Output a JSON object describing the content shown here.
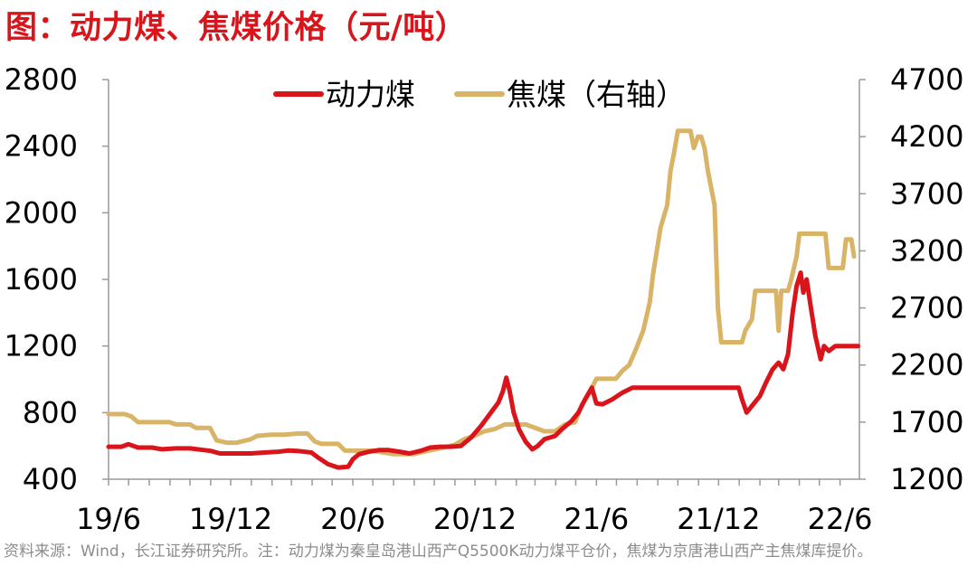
{
  "title": "图：动力煤、焦煤价格（元/吨）",
  "source_note": "资料来源：Wind，长江证券研究所。注：动力煤为秦皇岛港山西产Q5500K动力煤平仓价，焦煤为京唐港山西产主焦煤库提价。",
  "colors": {
    "thermal": "#d9141b",
    "coking": "#d9b467",
    "axis": "#9a9a9a"
  },
  "chart_data": {
    "type": "line",
    "x_labels": [
      "19/6",
      "19/12",
      "20/6",
      "20/12",
      "21/6",
      "21/12",
      "22/6"
    ],
    "ylim_left": [
      400,
      2800
    ],
    "yticks_left": [
      400,
      800,
      1200,
      1600,
      2000,
      2400,
      2800
    ],
    "ylim_right": [
      1200,
      4700
    ],
    "yticks_right": [
      1200,
      1700,
      2200,
      2700,
      3200,
      3700,
      4200,
      4700
    ],
    "legend_position": "top",
    "series": [
      {
        "name": "动力煤",
        "axis": "left",
        "points": [
          [
            "2019-06-01",
            595
          ],
          [
            "2019-06-20",
            595
          ],
          [
            "2019-07-01",
            610
          ],
          [
            "2019-07-15",
            590
          ],
          [
            "2019-08-05",
            590
          ],
          [
            "2019-08-20",
            580
          ],
          [
            "2019-09-10",
            585
          ],
          [
            "2019-10-01",
            585
          ],
          [
            "2019-11-01",
            570
          ],
          [
            "2019-11-15",
            555
          ],
          [
            "2019-12-01",
            555
          ],
          [
            "2019-12-31",
            555
          ],
          [
            "2020-01-20",
            560
          ],
          [
            "2020-02-10",
            565
          ],
          [
            "2020-02-25",
            572
          ],
          [
            "2020-03-10",
            570
          ],
          [
            "2020-03-31",
            560
          ],
          [
            "2020-04-10",
            530
          ],
          [
            "2020-04-25",
            490
          ],
          [
            "2020-05-10",
            470
          ],
          [
            "2020-05-25",
            475
          ],
          [
            "2020-06-01",
            520
          ],
          [
            "2020-06-10",
            550
          ],
          [
            "2020-06-25",
            565
          ],
          [
            "2020-07-10",
            575
          ],
          [
            "2020-07-25",
            575
          ],
          [
            "2020-08-10",
            565
          ],
          [
            "2020-08-25",
            555
          ],
          [
            "2020-09-10",
            570
          ],
          [
            "2020-09-25",
            590
          ],
          [
            "2020-10-10",
            595
          ],
          [
            "2020-10-25",
            595
          ],
          [
            "2020-11-10",
            600
          ],
          [
            "2020-11-25",
            650
          ],
          [
            "2020-12-10",
            720
          ],
          [
            "2020-12-25",
            800
          ],
          [
            "2021-01-05",
            860
          ],
          [
            "2021-01-12",
            930
          ],
          [
            "2021-01-17",
            1010
          ],
          [
            "2021-01-22",
            930
          ],
          [
            "2021-01-28",
            800
          ],
          [
            "2021-02-05",
            700
          ],
          [
            "2021-02-15",
            625
          ],
          [
            "2021-02-25",
            580
          ],
          [
            "2021-03-05",
            600
          ],
          [
            "2021-03-15",
            640
          ],
          [
            "2021-03-31",
            660
          ],
          [
            "2021-04-10",
            700
          ],
          [
            "2021-04-25",
            750
          ],
          [
            "2021-05-05",
            800
          ],
          [
            "2021-05-15",
            880
          ],
          [
            "2021-05-25",
            950
          ],
          [
            "2021-06-01",
            855
          ],
          [
            "2021-06-10",
            850
          ],
          [
            "2021-06-25",
            880
          ],
          [
            "2021-07-10",
            920
          ],
          [
            "2021-07-25",
            950
          ],
          [
            "2021-08-15",
            950
          ],
          [
            "2021-09-15",
            950
          ],
          [
            "2021-10-15",
            950
          ],
          [
            "2021-11-15",
            950
          ],
          [
            "2021-12-15",
            950
          ],
          [
            "2021-12-31",
            950
          ],
          [
            "2022-01-05",
            880
          ],
          [
            "2022-01-12",
            800
          ],
          [
            "2022-01-20",
            840
          ],
          [
            "2022-02-01",
            900
          ],
          [
            "2022-02-10",
            980
          ],
          [
            "2022-02-20",
            1060
          ],
          [
            "2022-03-01",
            1100
          ],
          [
            "2022-03-08",
            1060
          ],
          [
            "2022-03-15",
            1150
          ],
          [
            "2022-03-22",
            1400
          ],
          [
            "2022-03-28",
            1560
          ],
          [
            "2022-04-03",
            1640
          ],
          [
            "2022-04-07",
            1520
          ],
          [
            "2022-04-12",
            1600
          ],
          [
            "2022-04-18",
            1440
          ],
          [
            "2022-04-25",
            1260
          ],
          [
            "2022-05-03",
            1120
          ],
          [
            "2022-05-08",
            1200
          ],
          [
            "2022-05-15",
            1170
          ],
          [
            "2022-05-25",
            1200
          ],
          [
            "2022-06-10",
            1200
          ],
          [
            "2022-06-28",
            1200
          ]
        ]
      },
      {
        "name": "焦煤（右轴）",
        "axis": "right",
        "points": [
          [
            "2019-06-01",
            1770
          ],
          [
            "2019-06-25",
            1770
          ],
          [
            "2019-07-05",
            1750
          ],
          [
            "2019-07-15",
            1700
          ],
          [
            "2019-08-31",
            1700
          ],
          [
            "2019-09-10",
            1680
          ],
          [
            "2019-10-01",
            1680
          ],
          [
            "2019-10-10",
            1650
          ],
          [
            "2019-10-31",
            1650
          ],
          [
            "2019-11-10",
            1540
          ],
          [
            "2019-11-25",
            1520
          ],
          [
            "2019-12-10",
            1520
          ],
          [
            "2019-12-31",
            1550
          ],
          [
            "2020-01-10",
            1580
          ],
          [
            "2020-01-31",
            1590
          ],
          [
            "2020-02-20",
            1590
          ],
          [
            "2020-03-10",
            1600
          ],
          [
            "2020-03-25",
            1600
          ],
          [
            "2020-04-05",
            1530
          ],
          [
            "2020-04-15",
            1510
          ],
          [
            "2020-05-10",
            1510
          ],
          [
            "2020-05-20",
            1450
          ],
          [
            "2020-06-01",
            1450
          ],
          [
            "2020-06-30",
            1450
          ],
          [
            "2020-07-31",
            1420
          ],
          [
            "2020-08-31",
            1420
          ],
          [
            "2020-09-15",
            1440
          ],
          [
            "2020-10-01",
            1460
          ],
          [
            "2020-10-31",
            1500
          ],
          [
            "2020-11-15",
            1550
          ],
          [
            "2020-11-30",
            1580
          ],
          [
            "2020-12-15",
            1620
          ],
          [
            "2020-12-31",
            1640
          ],
          [
            "2021-01-15",
            1680
          ],
          [
            "2021-02-15",
            1680
          ],
          [
            "2021-03-15",
            1620
          ],
          [
            "2021-03-31",
            1620
          ],
          [
            "2021-04-15",
            1680
          ],
          [
            "2021-04-30",
            1700
          ],
          [
            "2021-05-10",
            1850
          ],
          [
            "2021-05-20",
            1940
          ],
          [
            "2021-06-01",
            2080
          ],
          [
            "2021-06-30",
            2080
          ],
          [
            "2021-07-10",
            2150
          ],
          [
            "2021-07-20",
            2200
          ],
          [
            "2021-07-31",
            2350
          ],
          [
            "2021-08-10",
            2500
          ],
          [
            "2021-08-20",
            2750
          ],
          [
            "2021-08-25",
            3000
          ],
          [
            "2021-09-05",
            3400
          ],
          [
            "2021-09-15",
            3600
          ],
          [
            "2021-09-20",
            3900
          ],
          [
            "2021-09-25",
            4050
          ],
          [
            "2021-10-01",
            4250
          ],
          [
            "2021-10-20",
            4250
          ],
          [
            "2021-10-25",
            4100
          ],
          [
            "2021-10-31",
            4200
          ],
          [
            "2021-11-05",
            4200
          ],
          [
            "2021-11-10",
            4100
          ],
          [
            "2021-11-15",
            3900
          ],
          [
            "2021-11-25",
            3600
          ],
          [
            "2021-11-30",
            2700
          ],
          [
            "2021-12-05",
            2400
          ],
          [
            "2021-12-31",
            2400
          ],
          [
            "2022-01-05",
            2400
          ],
          [
            "2022-01-10",
            2500
          ],
          [
            "2022-01-20",
            2600
          ],
          [
            "2022-01-25",
            2850
          ],
          [
            "2022-02-25",
            2850
          ],
          [
            "2022-03-01",
            2500
          ],
          [
            "2022-03-05",
            2850
          ],
          [
            "2022-03-15",
            2850
          ],
          [
            "2022-03-20",
            2950
          ],
          [
            "2022-03-28",
            3150
          ],
          [
            "2022-04-01",
            3350
          ],
          [
            "2022-05-10",
            3350
          ],
          [
            "2022-05-15",
            3050
          ],
          [
            "2022-06-05",
            3050
          ],
          [
            "2022-06-10",
            3300
          ],
          [
            "2022-06-18",
            3300
          ],
          [
            "2022-06-22",
            3150
          ]
        ]
      }
    ]
  }
}
